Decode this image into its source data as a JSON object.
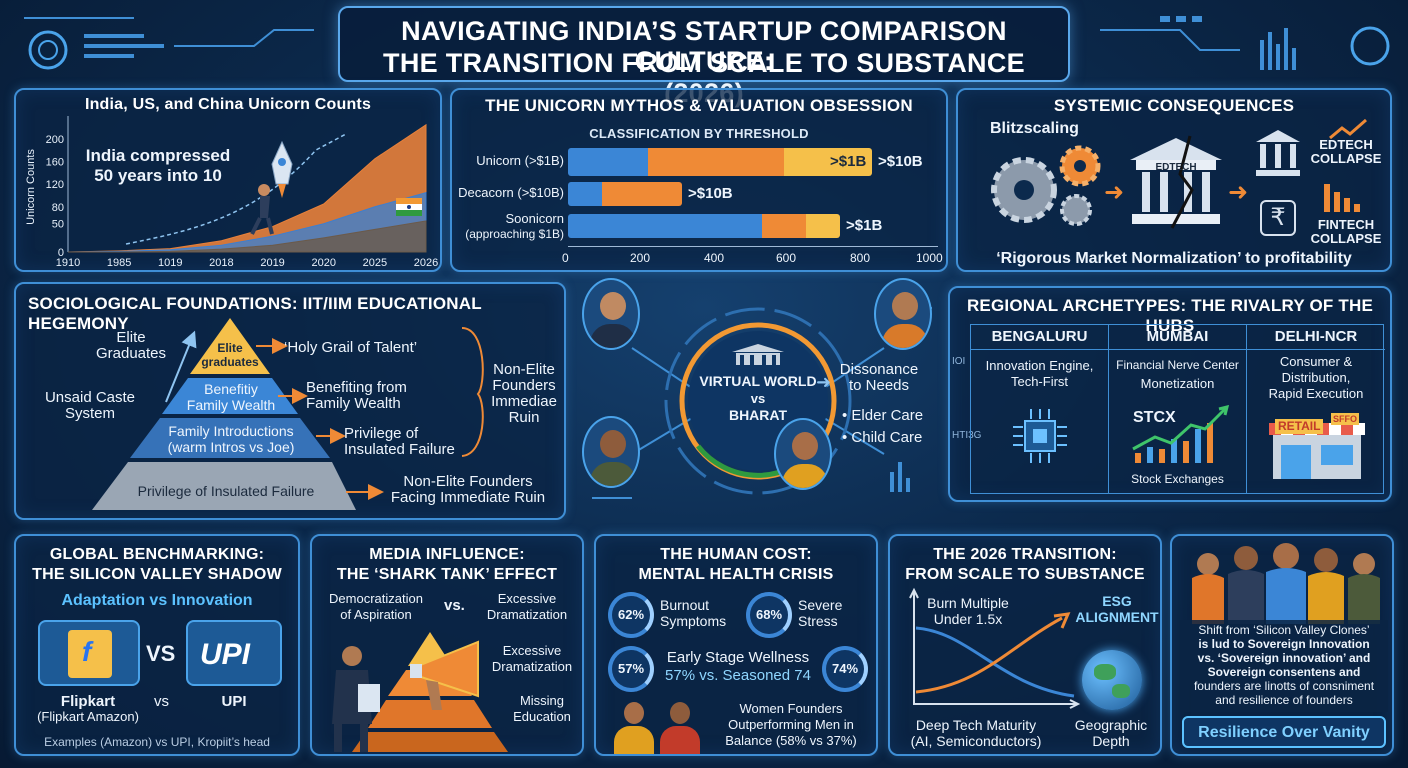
{
  "header": {
    "line1": "NAVIGATING INDIA’S STARTUP COMPARISON CULTURE:",
    "line2": "THE TRANSITION FROM SCALE TO SUBSTANCE (2026)"
  },
  "unicorn_chart": {
    "title": "India, US, and China Unicorn Counts",
    "ylabel": "Unicorn Counts",
    "annotation_line1": "India compressed",
    "annotation_line2": "50 years into 10"
  },
  "mythos": {
    "title": "THE UNICORN MYTHOS & VALUATION OBSESSION",
    "subtitle": "CLASSIFICATION BY THRESHOLD",
    "rows": [
      {
        "label": "Unicorn (>$1B)",
        "seg_label": ">$1B",
        "after_label": ">$10B"
      },
      {
        "label": "Decacorn (>$10B)",
        "after_label": ">$10B"
      },
      {
        "label_line1": "Soonicorn",
        "label_line2": "(approaching $1B)",
        "after_label": ">$1B"
      }
    ]
  },
  "systemic": {
    "title": "SYSTEMIC CONSEQUENCES",
    "blitz": "Blitzscaling",
    "building_sign": "EDTECH",
    "edtech_line1": "EDTECH",
    "edtech_line2": "COLLAPSE",
    "fintech_line1": "FINTECH",
    "fintech_line2": "COLLAPSE",
    "footer": "‘Rigorous Market Normalization’ to profitability"
  },
  "sociological": {
    "title": "SOCIOLOGICAL FOUNDATIONS: IIT/IIM EDUCATIONAL HEGEMONY",
    "elite_grads_l1": "Elite",
    "elite_grads_l2": "Graduates",
    "caste_l1": "Unsaid Caste",
    "caste_l2": "System",
    "tier1_l1": "Elite",
    "tier1_l2": "graduates",
    "tier2_l1": "Benefitiy",
    "tier2_l2": "Family Wealth",
    "tier3_l1": "Family Introductions",
    "tier3_l2": "(warm Intros vs Joe)",
    "tier4": "Privilege of Insulated Failure",
    "arrow1": "‘Holy Grail of Talent’",
    "arrow2_l1": "Benefiting from",
    "arrow2_l2": "Family Wealth",
    "arrow3_l1": "Privilege of",
    "arrow3_l2": "Insulated Failure",
    "arrow4_l1": "Non-Elite Founders",
    "arrow4_l2": "Facing Immediate Ruin",
    "nonelite_l1": "Non-Elite",
    "nonelite_l2": "Founders",
    "nonelite_l3": "Immediae",
    "nonelite_l4": "Ruin"
  },
  "center": {
    "line1": "VIRTUAL WORLD",
    "line2": "vs",
    "line3": "BHARAT",
    "dissonance_l1": "Dissonance",
    "dissonance_l2": "to Needs",
    "bullet1": "• Elder Care",
    "bullet2": "• Child Care"
  },
  "regional": {
    "title": "REGIONAL ARCHETYPES: THE RIVALRY OF THE HUBS",
    "side_top": "IOI",
    "side_bottom": "HTI3G",
    "hubs": [
      {
        "name": "BENGALURU",
        "desc_l1": "Innovation Engine,",
        "desc_l2": "Tech-First",
        "desc_l3": ""
      },
      {
        "name": "MUMBAI",
        "desc_l1": "Financial Nerve Center",
        "desc_l2": "Monetization",
        "desc_l3": ""
      },
      {
        "name": "DELHI-NCR",
        "desc_l1": "Consumer &",
        "desc_l2": "Distribution,",
        "desc_l3": "Rapid Execution"
      }
    ],
    "stcx": "STCX",
    "stock_caption": "Stock Exchanges",
    "retail_sign": "RETAIL",
    "shop_sign": "SFFO"
  },
  "global": {
    "title_l1": "GLOBAL BENCHMARKING:",
    "title_l2": "THE SILICON VALLEY SHADOW",
    "subtitle": "Adaptation vs Innovation",
    "vs_big": "VS",
    "upi_logo": "UPI",
    "flipkart": "Flipkart",
    "flipkart_sub": "(Flipkart Amazon)",
    "vs_small": "vs",
    "upi": "UPI",
    "footer": "Examples (Amazon) vs UPI, Kropiit’s head"
  },
  "media": {
    "title_l1": "MEDIA INFLUENCE:",
    "title_l2": "THE ‘SHARK TANK’ EFFECT",
    "demo_l1": "Democratization",
    "demo_l2": "of Aspiration",
    "vs": "vs.",
    "exc1_l1": "Excessive",
    "exc1_l2": "Dramatization",
    "exc2_l1": "Excessive",
    "exc2_l2": "Dramatization",
    "miss_l1": "Missing",
    "miss_l2": "Education"
  },
  "human": {
    "title_l1": "THE HUMAN COST:",
    "title_l2": "MENTAL HEALTH CRISIS",
    "stat1_value": "62%",
    "stat1_l1": "Burnout",
    "stat1_l2": "Symptoms",
    "stat2_value": "68%",
    "stat2_l1": "Severe",
    "stat2_l2": "Stress",
    "stat3_value": "57%",
    "stat4_value": "74%",
    "wellness_l1": "Early Stage Wellness",
    "wellness_l2": "57% vs. Seasoned 74",
    "women_l1": "Women Founders",
    "women_l2": "Outperforming Men in",
    "women_l3": "Balance (58% vs 37%)"
  },
  "transition": {
    "title_l1": "THE 2026 TRANSITION:",
    "title_l2": "FROM SCALE TO SUBSTANCE",
    "burn_l1": "Burn Multiple",
    "burn_l2": "Under 1.5x",
    "esg_l1": "ESG",
    "esg_l2": "ALIGNMENT",
    "deep_l1": "Deep Tech Maturity",
    "deep_l2": "(AI, Semiconductors)",
    "geo_l1": "Geographic",
    "geo_l2": "Depth"
  },
  "founders": {
    "text_l1": "Shift from ‘Silicon Valley Clones’",
    "text_l2": "is lud to Sovereign Innovation",
    "text_l3": "vs. ‘Sovereign innovation’ and",
    "text_l4": "Sovereign consentens and",
    "text_l5": "founders are linotts of consniment",
    "text_l6": "and resilience of founders",
    "button": "Resilience Over Vanity"
  },
  "chart_data": {
    "type": "area",
    "title": "India, US, and China Unicorn Counts",
    "xlabel": "",
    "ylabel": "Unicorn Counts",
    "categories": [
      "1910",
      "1985",
      "1019",
      "2018",
      "2019",
      "2020",
      "2025",
      "2026"
    ],
    "ylim": [
      0,
      230
    ],
    "yticks": [
      0,
      50,
      80,
      120,
      160,
      200
    ],
    "series": [
      {
        "name": "",
        "color": "#e8813a",
        "values": [
          0,
          2,
          6,
          20,
          45,
          85,
          165,
          225
        ]
      },
      {
        "name": "",
        "color": "#3d7fd0",
        "values": [
          0,
          1,
          4,
          12,
          28,
          50,
          80,
          105
        ]
      },
      {
        "name": "",
        "color": "#6b5a4a",
        "values": [
          0,
          0,
          1,
          5,
          12,
          25,
          40,
          55
        ]
      }
    ]
  },
  "colors": {
    "panel_border": "#3f8fd6",
    "accent_orange": "#ef8a36",
    "accent_yellow": "#f5c04a",
    "bar_blue": "#3b86d6",
    "button_text": "#7fd0ff"
  }
}
